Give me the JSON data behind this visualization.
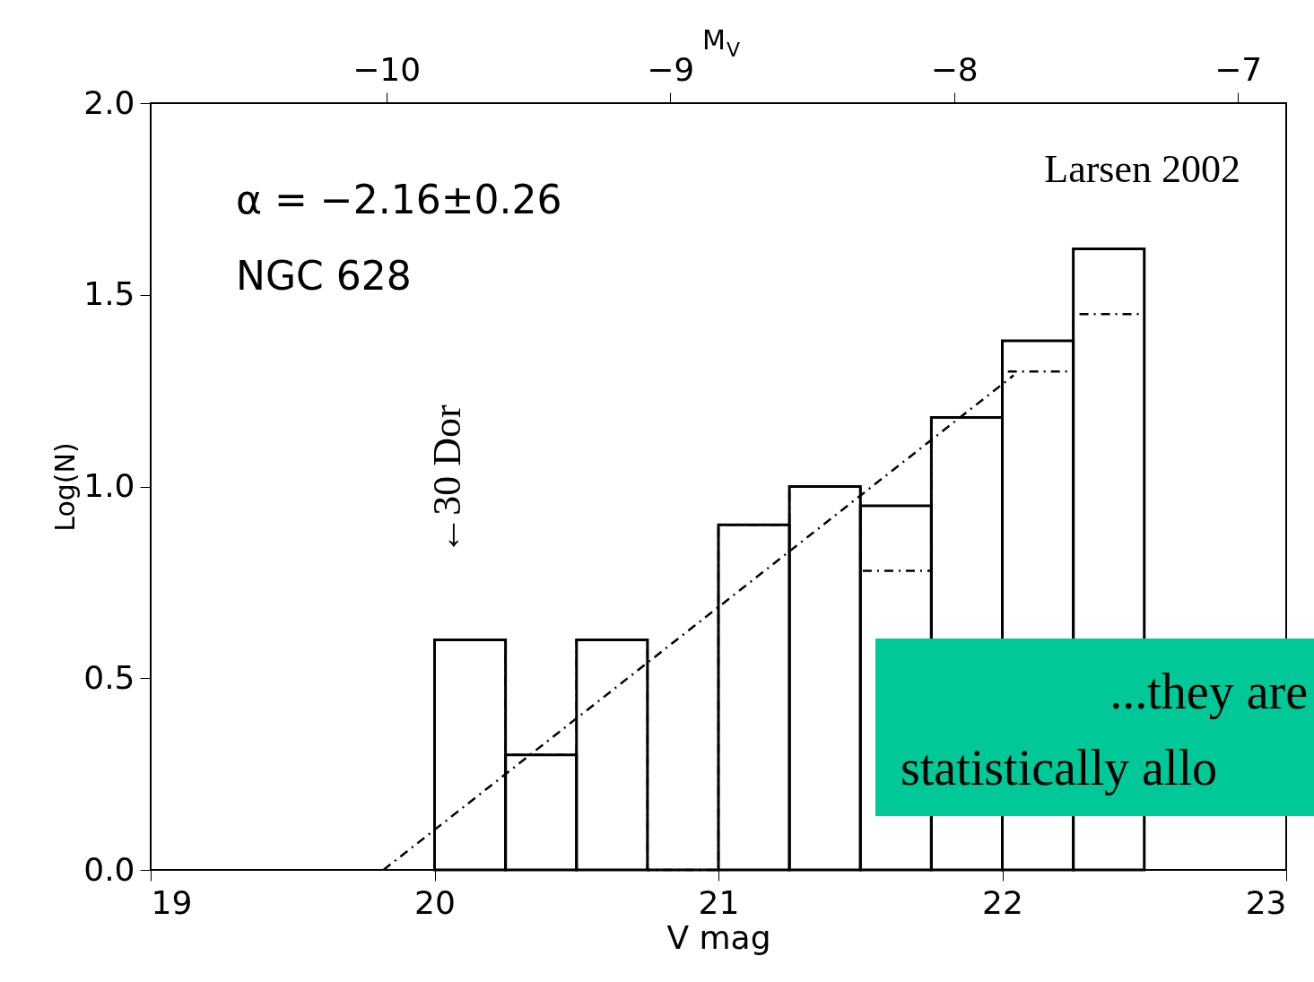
{
  "chart_data": {
    "type": "histogram",
    "xlabel": "V mag",
    "ylabel": "Log(N)",
    "x2label": "M$_{V}$",
    "bins": [
      20,
      20.25,
      20.5,
      20.75,
      21,
      21.25,
      21.5,
      21.75,
      22,
      22.25,
      22.5
    ],
    "series": [
      {
        "color": "#000000",
        "line_style": "solid",
        "values": [
          0.6,
          0.3,
          0.6,
          0,
          0.9,
          1.0,
          0.95,
          1.18,
          1.38,
          1.62
        ]
      },
      {
        "color": "#000000",
        "line_style": "dashed",
        "values": [
          0.6,
          0.3,
          0.6,
          0,
          0.9,
          1.0,
          0.78,
          1.18,
          1.3,
          1.45
        ]
      },
      {
        "type": "line",
        "color": "#000000",
        "line_style": "dashed",
        "x": [
          19.82,
          22.04
        ],
        "values": [
          0,
          1.29
        ]
      }
    ],
    "xlim": [
      19,
      23
    ],
    "xticks": [
      19,
      20,
      21,
      22,
      23
    ],
    "ylim": [
      0,
      2.0
    ],
    "yticks": [
      {
        "value": 0,
        "label": "0.0"
      },
      0.5,
      {
        "value": 1,
        "label": "1.0"
      },
      1.5,
      {
        "value": 2,
        "label": "2.0"
      }
    ],
    "x2lim": [
      -10.83,
      -6.83
    ],
    "x2ticks": [
      {
        "value": -10,
        "label": "−10"
      },
      {
        "value": -9,
        "label": "−9"
      },
      {
        "value": -8,
        "label": "−8"
      },
      {
        "value": -7,
        "label": "−7"
      }
    ],
    "annotations": [
      "α = −2.16±0.26",
      "NGC 628",
      "Larsen 2002",
      "←30 Dor",
      "...they are statistically allo"
    ],
    "grid": false
  }
}
